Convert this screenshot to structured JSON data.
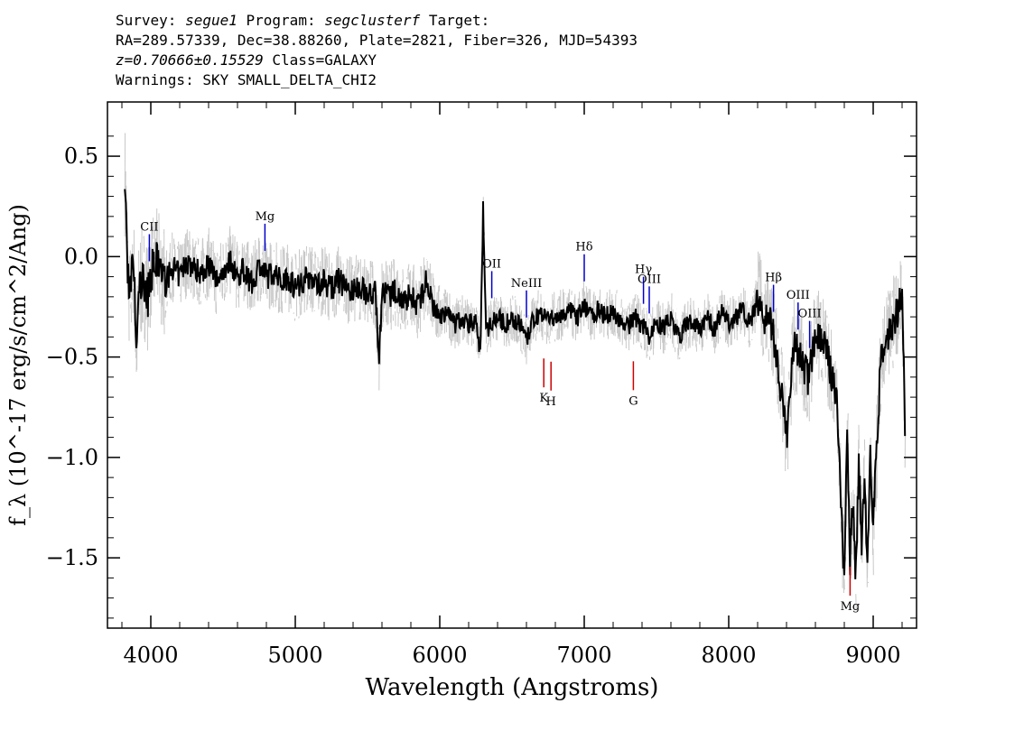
{
  "header": {
    "survey_label": "Survey:",
    "survey_value": "segue1",
    "program_label": "Program:",
    "program_value": "segclusterf",
    "target_label": "Target:",
    "line2": "RA=289.57339, Dec=38.88260, Plate=2821, Fiber=326, MJD=54393",
    "z_value": "z=0.70666±0.15529",
    "class_text": "Class=GALAXY",
    "warnings": "Warnings: SKY SMALL_DELTA_CHI2"
  },
  "chart_data": {
    "type": "line",
    "title": "",
    "xlabel": "Wavelength (Angstroms)",
    "ylabel": "f_λ (10^-17 erg/s/cm^2/Ang)",
    "xlim": [
      3700,
      9300
    ],
    "ylim": [
      -1.85,
      0.77
    ],
    "xticks": [
      4000,
      5000,
      6000,
      7000,
      8000,
      9000
    ],
    "xtick_labels": [
      "4000",
      "5000",
      "6000",
      "7000",
      "8000",
      "9000"
    ],
    "yticks": [
      0.5,
      0.0,
      -0.5,
      -1.0,
      -1.5
    ],
    "ytick_labels": [
      "0.5",
      "0.0",
      "−0.5",
      "−1.0",
      "−1.5"
    ],
    "colors": {
      "flux": "#000000",
      "error": "#c8c8c8",
      "emission": "#0000cc",
      "absorption": "#cc0000"
    },
    "series": [
      {
        "name": "flux",
        "x": [
          3820,
          3850,
          3880,
          3900,
          3920,
          3950,
          3980,
          4000,
          4050,
          4100,
          4150,
          4200,
          4250,
          4300,
          4350,
          4400,
          4450,
          4500,
          4550,
          4600,
          4650,
          4700,
          4750,
          4800,
          4850,
          4900,
          4950,
          5000,
          5050,
          5100,
          5150,
          5200,
          5250,
          5300,
          5350,
          5400,
          5450,
          5500,
          5550,
          5580,
          5600,
          5650,
          5700,
          5750,
          5800,
          5850,
          5880,
          5900,
          5950,
          6000,
          6050,
          6100,
          6150,
          6200,
          6250,
          6280,
          6300,
          6320,
          6350,
          6400,
          6450,
          6500,
          6550,
          6600,
          6650,
          6700,
          6750,
          6800,
          6850,
          6900,
          6950,
          7000,
          7050,
          7100,
          7150,
          7200,
          7250,
          7300,
          7350,
          7400,
          7450,
          7500,
          7550,
          7600,
          7650,
          7700,
          7750,
          7800,
          7850,
          7900,
          7950,
          8000,
          8050,
          8100,
          8150,
          8200,
          8250,
          8300,
          8350,
          8400,
          8450,
          8500,
          8550,
          8600,
          8650,
          8700,
          8750,
          8780,
          8800,
          8820,
          8840,
          8860,
          8880,
          8900,
          8920,
          8940,
          8960,
          8980,
          9000,
          9050,
          9100,
          9150,
          9200,
          9220
        ],
        "y": [
          0.38,
          -0.25,
          0.0,
          -0.48,
          -0.15,
          -0.12,
          -0.2,
          -0.08,
          -0.02,
          -0.14,
          -0.05,
          -0.1,
          -0.02,
          -0.06,
          -0.08,
          -0.03,
          -0.12,
          -0.07,
          -0.02,
          -0.1,
          -0.06,
          -0.14,
          -0.04,
          -0.1,
          -0.08,
          -0.12,
          -0.1,
          -0.15,
          -0.12,
          -0.1,
          -0.14,
          -0.12,
          -0.16,
          -0.12,
          -0.15,
          -0.18,
          -0.14,
          -0.2,
          -0.16,
          -0.5,
          -0.18,
          -0.2,
          -0.17,
          -0.22,
          -0.19,
          -0.24,
          -0.2,
          -0.1,
          -0.25,
          -0.3,
          -0.28,
          -0.34,
          -0.31,
          -0.33,
          -0.32,
          -0.5,
          0.25,
          -0.38,
          -0.33,
          -0.3,
          -0.34,
          -0.31,
          -0.33,
          -0.42,
          -0.31,
          -0.28,
          -0.32,
          -0.3,
          -0.29,
          -0.27,
          -0.31,
          -0.24,
          -0.3,
          -0.26,
          -0.3,
          -0.27,
          -0.32,
          -0.35,
          -0.3,
          -0.34,
          -0.4,
          -0.33,
          -0.36,
          -0.3,
          -0.4,
          -0.35,
          -0.32,
          -0.37,
          -0.3,
          -0.36,
          -0.28,
          -0.33,
          -0.3,
          -0.26,
          -0.34,
          -0.2,
          -0.3,
          -0.34,
          -0.6,
          -0.9,
          -0.45,
          -0.5,
          -0.62,
          -0.38,
          -0.42,
          -0.55,
          -0.7,
          -1.3,
          -1.6,
          -0.9,
          -1.5,
          -1.2,
          -1.6,
          -1.0,
          -1.45,
          -1.1,
          -1.5,
          -0.95,
          -1.35,
          -0.55,
          -0.42,
          -0.3,
          -0.2,
          -0.85
        ]
      }
    ],
    "lines": [
      {
        "label": "CII",
        "x": 3990,
        "kind": "emission"
      },
      {
        "label": "Mg",
        "x": 4790,
        "kind": "emission"
      },
      {
        "label": "OII",
        "x": 6360,
        "kind": "emission"
      },
      {
        "label": "NeIII",
        "x": 6600,
        "kind": "emission"
      },
      {
        "label": "Hδ",
        "x": 7000,
        "kind": "emission"
      },
      {
        "label": "Hγ",
        "x": 7410,
        "kind": "emission"
      },
      {
        "label": "OIII",
        "x": 7450,
        "kind": "emission"
      },
      {
        "label": "Hβ",
        "x": 8310,
        "kind": "emission"
      },
      {
        "label": "OIII",
        "x": 8480,
        "kind": "emission"
      },
      {
        "label": "OIII",
        "x": 8560,
        "kind": "emission"
      },
      {
        "label": "K",
        "x": 6720,
        "kind": "absorption"
      },
      {
        "label": "H",
        "x": 6770,
        "kind": "absorption"
      },
      {
        "label": "G",
        "x": 7340,
        "kind": "absorption"
      },
      {
        "label": "Mg",
        "x": 8840,
        "kind": "absorption"
      }
    ]
  }
}
